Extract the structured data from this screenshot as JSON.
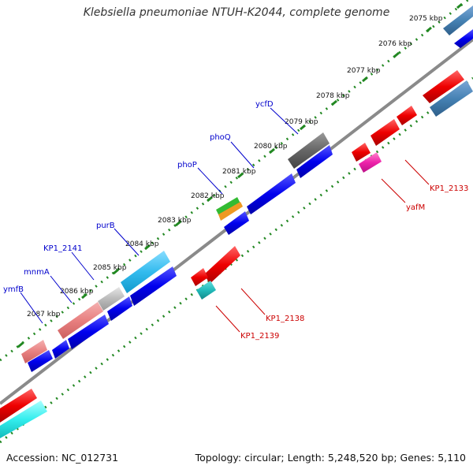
{
  "title": "Klebsiella pneumoniae NTUH-K2044, complete genome",
  "footer": {
    "accession": "Accession: NC_012731",
    "info": "Topology: circular; Length: 5,248,520 bp; Genes: 5,110"
  },
  "ticks": [
    "2075 kbp",
    "2076 kbp",
    "2077 kbp",
    "2078 kbp",
    "2079 kbp",
    "2080 kbp",
    "2081 kbp",
    "2082 kbp",
    "2083 kbp",
    "2084 kbp",
    "2085 kbp",
    "2086 kbp",
    "2087 kbp"
  ],
  "forward_labels": [
    "ycfD",
    "phoQ",
    "phoP",
    "purB",
    "KP1_2141",
    "mnmA",
    "ymfB"
  ],
  "reverse_labels": [
    "KP1_2133",
    "yafM",
    "KP1_2138",
    "KP1_2139"
  ],
  "colors": {
    "forward_strand": "#0000ee",
    "reverse_strand": "#ee0000",
    "backbone": "#888888",
    "dotted_ring": "#228822",
    "forward_label": "#0000cc",
    "reverse_label": "#cc0000"
  }
}
